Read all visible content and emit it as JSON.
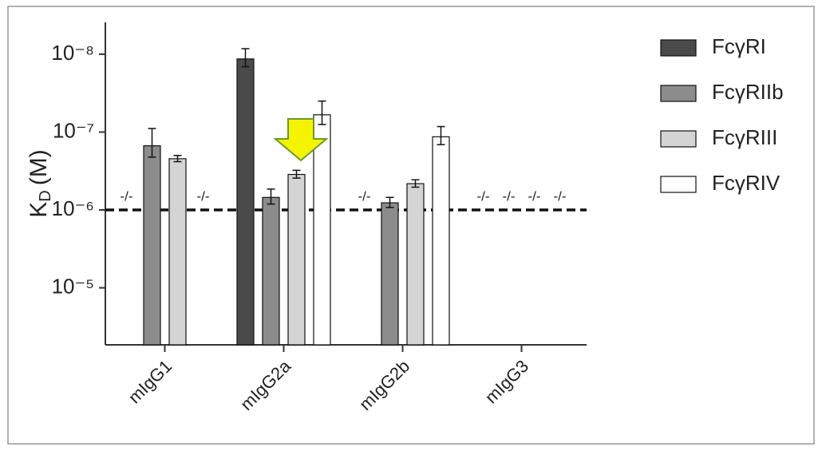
{
  "chart_data": {
    "type": "bar",
    "ylabel": "K",
    "ylabel_sub": "D",
    "ylabel_unit": "(M)",
    "categories": [
      "mIgG1",
      "mIgG2a",
      "mIgG2b",
      "mIgG3"
    ],
    "series": [
      {
        "name": "FcγRI",
        "color": "#4a4a4a",
        "values": [
          null,
          1.15e-08,
          null,
          null
        ],
        "errors": [
          null,
          3e-09,
          null,
          null
        ]
      },
      {
        "name": "FcγRIIb",
        "color": "#8c8c8c",
        "values": [
          1.5e-07,
          6.9e-07,
          8.1e-07,
          null
        ],
        "errors": [
          6e-08,
          1.5e-07,
          1.2e-07,
          null
        ]
      },
      {
        "name": "FcγRIII",
        "color": "#d4d4d4",
        "values": [
          2.2e-07,
          3.5e-07,
          4.6e-07,
          null
        ],
        "errors": [
          2e-08,
          4e-08,
          5e-08,
          null
        ]
      },
      {
        "name": "FcγRIV",
        "color": "#ffffff",
        "values": [
          null,
          6e-08,
          1.15e-07,
          null
        ],
        "errors": [
          null,
          2e-08,
          3e-08,
          null
        ]
      }
    ],
    "null_label": "-/-",
    "reference_line": 1e-06,
    "log_scale": true,
    "ylim": [
      5.4e-05,
      3.9e-09
    ],
    "yticks": [
      {
        "value": 1e-08,
        "label": "10⁻⁸"
      },
      {
        "value": 1e-07,
        "label": "10⁻⁷"
      },
      {
        "value": 1e-06,
        "label": "10⁻⁶"
      },
      {
        "value": 1e-05,
        "label": "10⁻⁵"
      }
    ],
    "legend": "right"
  }
}
